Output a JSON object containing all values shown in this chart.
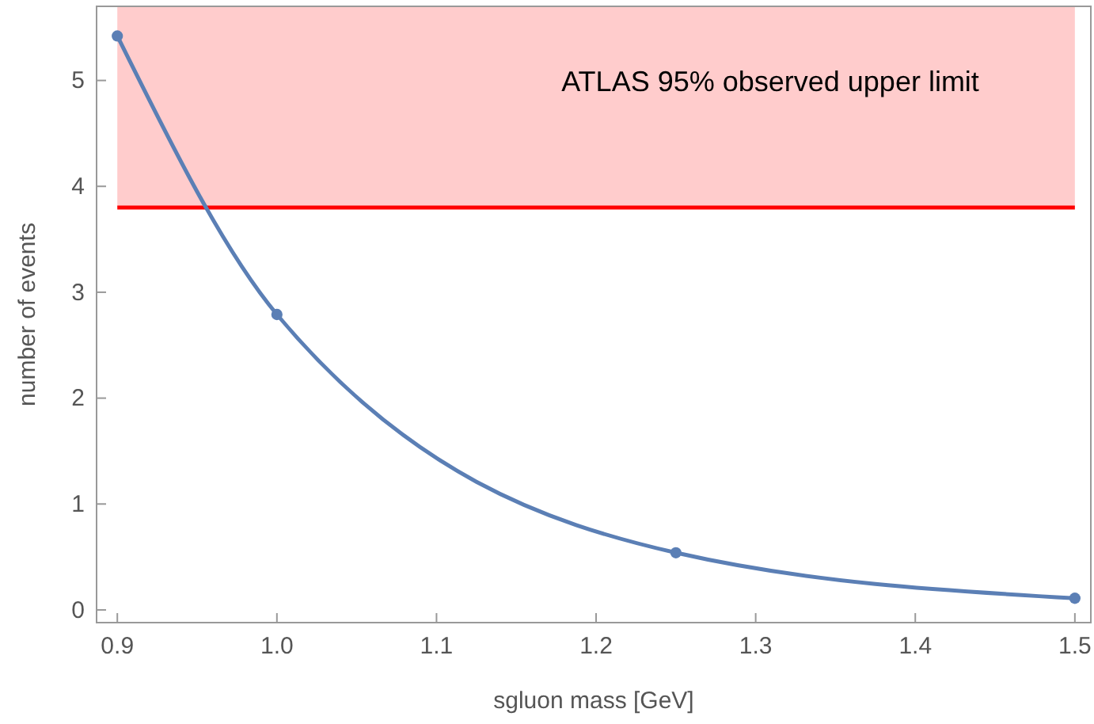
{
  "chart_data": {
    "type": "line",
    "xlabel": "sgluon mass [GeV]",
    "ylabel": "number of events",
    "x": [
      0.9,
      1.0,
      1.25,
      1.5
    ],
    "series": [
      {
        "color": "#5b7fb5",
        "values": [
          5.42,
          2.79,
          0.54,
          0.11
        ]
      }
    ],
    "marker": "circle",
    "xlim": [
      0.887,
      1.51
    ],
    "xticks": [
      {
        "value": 0.9,
        "label": "0.9"
      },
      {
        "value": 1.0,
        "label": "1.0"
      },
      {
        "value": 1.1,
        "label": "1.1"
      },
      {
        "value": 1.2,
        "label": "1.2"
      },
      {
        "value": 1.3,
        "label": "1.3"
      },
      {
        "value": 1.4,
        "label": "1.4"
      },
      {
        "value": 1.5,
        "label": "1.5"
      }
    ],
    "ylim": [
      -0.12,
      5.7
    ],
    "yticks": [
      0,
      1,
      2,
      3,
      4,
      5
    ],
    "bands": [
      {
        "axis": "y",
        "from": 3.8,
        "to": 5.7,
        "label": "ATLAS 95% observed upper limit",
        "color": "#ffcccc"
      }
    ],
    "ref_lines": [
      {
        "axis": "y",
        "value": 3.8,
        "color": "#ff0000"
      }
    ],
    "grid": false
  }
}
